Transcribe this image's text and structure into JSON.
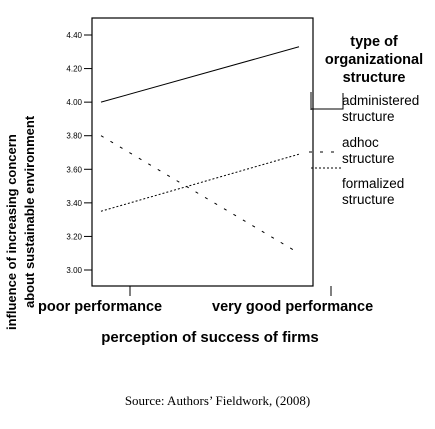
{
  "chart_data": {
    "type": "line",
    "title": "",
    "xlabel": "perception of success of firms",
    "ylabel_lines": [
      "influence of increasing concern",
      "about sustainable environment"
    ],
    "categories": [
      "poor performance",
      "very good performance"
    ],
    "y_tick_labels": [
      "3.00",
      "3.20",
      "3.40",
      "3.60",
      "3.80",
      "4.00",
      "4.20",
      "4.40"
    ],
    "ylim": [
      3.0,
      4.4
    ],
    "grid": false,
    "legend": {
      "title_lines": [
        "type of",
        "organizational",
        "structure"
      ],
      "placement": "right"
    },
    "series": [
      {
        "name_lines": [
          "administered",
          "structure"
        ],
        "values": [
          4.0,
          4.33
        ],
        "style": "solid"
      },
      {
        "name_lines": [
          "adhoc",
          "structure"
        ],
        "values": [
          3.8,
          3.1
        ],
        "style": "dashed"
      },
      {
        "name_lines": [
          "formalized",
          "structure"
        ],
        "values": [
          3.35,
          3.69
        ],
        "style": "dotted"
      }
    ]
  },
  "source_text": "Source: Authors’ Fieldwork, (2008)"
}
